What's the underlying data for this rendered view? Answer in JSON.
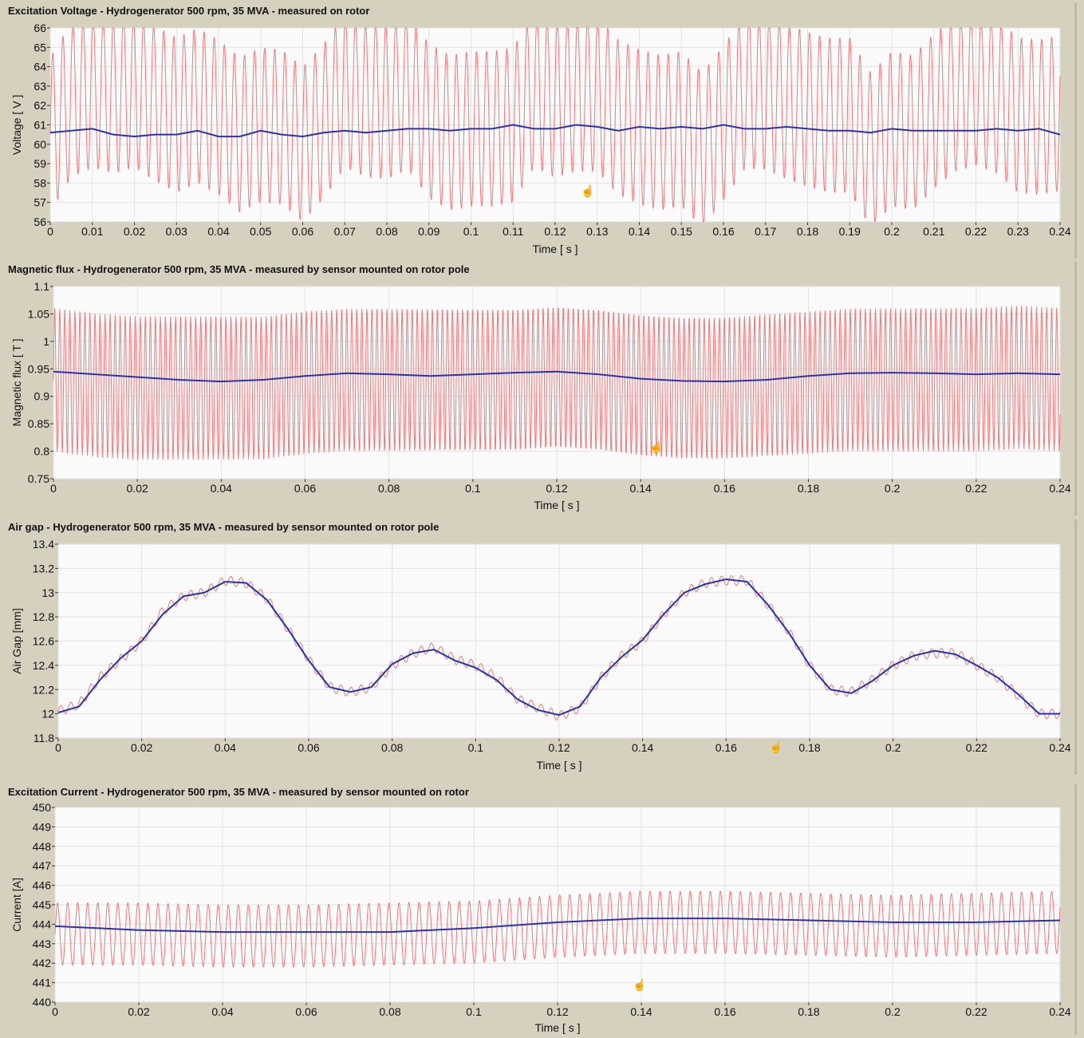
{
  "chart_data": [
    {
      "id": "voltage",
      "type": "line",
      "title": "Excitation Voltage - Hydrogenerator 500 rpm, 35 MVA - measured on rotor",
      "xlabel": "Time [ s ]",
      "ylabel": "Voltage [ V ]",
      "xlim": [
        0,
        0.24
      ],
      "ylim": [
        56,
        66
      ],
      "xticks": [
        0,
        0.01,
        0.02,
        0.03,
        0.04,
        0.05,
        0.06,
        0.07,
        0.08,
        0.09,
        0.1,
        0.11,
        0.12,
        0.13,
        0.14,
        0.15,
        0.16,
        0.17,
        0.18,
        0.19,
        0.2,
        0.21,
        0.22,
        0.23,
        0.24
      ],
      "xtick_labels": [
        "0",
        "0.01",
        "0.02",
        "0.03",
        "0.04",
        "0.05",
        "0.06",
        "0.07",
        "0.08",
        "0.09",
        "0.1",
        "0.11",
        "0.12",
        "0.13",
        "0.14",
        "0.15",
        "0.16",
        "0.17",
        "0.18",
        "0.19",
        "0.2",
        "0.21",
        "0.22",
        "0.23",
        "0.24"
      ],
      "yticks": [
        56,
        57,
        58,
        59,
        60,
        61,
        62,
        63,
        64,
        65,
        66
      ],
      "ytick_labels": [
        "56",
        "57",
        "58",
        "59",
        "60",
        "61",
        "62",
        "63",
        "64",
        "65",
        "66"
      ],
      "grid": true,
      "series": [
        {
          "color": "#f07878",
          "style": "thin",
          "x": [
            0.0,
            0.005,
            0.01,
            0.015,
            0.02,
            0.025,
            0.03,
            0.035,
            0.04,
            0.045,
            0.05,
            0.055,
            0.06,
            0.065,
            0.07,
            0.075,
            0.08,
            0.085,
            0.09,
            0.095,
            0.1,
            0.105,
            0.11,
            0.115,
            0.12,
            0.125,
            0.13,
            0.135,
            0.14,
            0.145,
            0.15,
            0.155,
            0.16,
            0.165,
            0.17,
            0.175,
            0.18,
            0.185,
            0.19,
            0.195,
            0.2,
            0.205,
            0.21,
            0.215,
            0.22,
            0.225,
            0.23,
            0.235,
            0.24
          ],
          "y": [
            60.5,
            62.3,
            62.8,
            62.5,
            62.8,
            62.1,
            61.5,
            62.0,
            61.4,
            60.5,
            61.0,
            60.9,
            60.0,
            61.2,
            62.8,
            62.3,
            62.2,
            62.7,
            61.2,
            60.6,
            60.8,
            60.8,
            61.0,
            62.8,
            62.3,
            62.6,
            62.6,
            61.4,
            60.9,
            60.6,
            60.8,
            59.7,
            61.1,
            62.7,
            62.7,
            62.2,
            61.8,
            61.5,
            61.5,
            59.7,
            60.8,
            60.6,
            61.7,
            62.6,
            62.9,
            62.5,
            61.5,
            61.4,
            61.6
          ],
          "oscillation": {
            "amplitude": 4.0,
            "frequency_hz": 417
          }
        },
        {
          "color": "#2233bb",
          "style": "thick",
          "x": [
            0.0,
            0.005,
            0.01,
            0.015,
            0.02,
            0.025,
            0.03,
            0.035,
            0.04,
            0.045,
            0.05,
            0.055,
            0.06,
            0.065,
            0.07,
            0.075,
            0.08,
            0.085,
            0.09,
            0.095,
            0.1,
            0.105,
            0.11,
            0.115,
            0.12,
            0.125,
            0.13,
            0.135,
            0.14,
            0.145,
            0.15,
            0.155,
            0.16,
            0.165,
            0.17,
            0.175,
            0.18,
            0.185,
            0.19,
            0.195,
            0.2,
            0.205,
            0.21,
            0.215,
            0.22,
            0.225,
            0.23,
            0.235,
            0.24
          ],
          "y": [
            60.6,
            60.7,
            60.8,
            60.5,
            60.4,
            60.5,
            60.5,
            60.7,
            60.4,
            60.4,
            60.7,
            60.5,
            60.4,
            60.6,
            60.7,
            60.6,
            60.7,
            60.8,
            60.8,
            60.7,
            60.8,
            60.8,
            61.0,
            60.8,
            60.8,
            61.0,
            60.9,
            60.7,
            60.9,
            60.8,
            60.9,
            60.8,
            61.0,
            60.8,
            60.8,
            60.9,
            60.8,
            60.7,
            60.7,
            60.6,
            60.8,
            60.7,
            60.7,
            60.7,
            60.7,
            60.8,
            60.7,
            60.8,
            60.5
          ]
        }
      ]
    },
    {
      "id": "flux",
      "type": "line",
      "title": "Magnetic flux - Hydrogenerator 500 rpm, 35 MVA - measured by sensor mounted on rotor pole",
      "xlabel": "Time [ s ]",
      "ylabel": "Magnetic flux [ T ]",
      "xlim": [
        0,
        0.24
      ],
      "ylim": [
        0.75,
        1.1
      ],
      "xticks": [
        0,
        0.02,
        0.04,
        0.06,
        0.08,
        0.1,
        0.12,
        0.14,
        0.16,
        0.18,
        0.2,
        0.22,
        0.24
      ],
      "xtick_labels": [
        "0",
        "0.02",
        "0.04",
        "0.06",
        "0.08",
        "0.1",
        "0.12",
        "0.14",
        "0.16",
        "0.18",
        "0.2",
        "0.22",
        "0.24"
      ],
      "yticks": [
        0.75,
        0.8,
        0.85,
        0.9,
        0.95,
        1.0,
        1.05,
        1.1
      ],
      "ytick_labels": [
        "0.75",
        "0.8",
        "0.85",
        "0.9",
        "0.95",
        "1",
        "1.05",
        "1.1"
      ],
      "grid": true,
      "series": [
        {
          "color": "#f07878",
          "style": "thin",
          "x": [
            0.0,
            0.01,
            0.02,
            0.03,
            0.04,
            0.05,
            0.06,
            0.07,
            0.08,
            0.09,
            0.1,
            0.11,
            0.12,
            0.13,
            0.14,
            0.15,
            0.16,
            0.17,
            0.18,
            0.19,
            0.2,
            0.21,
            0.22,
            0.23,
            0.24
          ],
          "y": [
            0.93,
            0.92,
            0.915,
            0.915,
            0.915,
            0.915,
            0.925,
            0.93,
            0.93,
            0.93,
            0.93,
            0.93,
            0.935,
            0.93,
            0.92,
            0.915,
            0.915,
            0.92,
            0.925,
            0.93,
            0.93,
            0.93,
            0.93,
            0.935,
            0.93
          ],
          "oscillation": {
            "amplitude": 0.13,
            "frequency_hz": 833
          }
        },
        {
          "color": "#2233bb",
          "style": "thick",
          "x": [
            0.0,
            0.01,
            0.02,
            0.03,
            0.04,
            0.05,
            0.06,
            0.07,
            0.08,
            0.09,
            0.1,
            0.11,
            0.12,
            0.13,
            0.14,
            0.15,
            0.16,
            0.17,
            0.18,
            0.19,
            0.2,
            0.21,
            0.22,
            0.23,
            0.24
          ],
          "y": [
            0.945,
            0.94,
            0.935,
            0.93,
            0.927,
            0.93,
            0.937,
            0.942,
            0.94,
            0.937,
            0.94,
            0.943,
            0.945,
            0.94,
            0.932,
            0.928,
            0.927,
            0.93,
            0.937,
            0.942,
            0.943,
            0.942,
            0.94,
            0.942,
            0.94
          ]
        }
      ]
    },
    {
      "id": "airgap",
      "type": "line",
      "title": "Air gap - Hydrogenerator 500 rpm, 35 MVA - measured by sensor mounted on rotor pole",
      "xlabel": "Time [ s ]",
      "ylabel": "Air Gap [mm]",
      "xlim": [
        0,
        0.24
      ],
      "ylim": [
        11.8,
        13.4
      ],
      "xticks": [
        0,
        0.02,
        0.04,
        0.06,
        0.08,
        0.1,
        0.12,
        0.14,
        0.16,
        0.18,
        0.2,
        0.22,
        0.24
      ],
      "xtick_labels": [
        "0",
        "0.02",
        "0.04",
        "0.06",
        "0.08",
        "0.1",
        "0.12",
        "0.14",
        "0.16",
        "0.18",
        "0.2",
        "0.22",
        "0.24"
      ],
      "yticks": [
        11.8,
        12.0,
        12.2,
        12.4,
        12.6,
        12.8,
        13.0,
        13.2,
        13.4
      ],
      "ytick_labels": [
        "11.8",
        "12",
        "12.2",
        "12.4",
        "12.6",
        "12.8",
        "13",
        "13.2",
        "13.4"
      ],
      "grid": true,
      "series": [
        {
          "color": "#f07878",
          "style": "thin",
          "x": [
            0.0,
            0.005,
            0.01,
            0.015,
            0.02,
            0.025,
            0.03,
            0.035,
            0.04,
            0.045,
            0.05,
            0.055,
            0.06,
            0.065,
            0.07,
            0.075,
            0.08,
            0.085,
            0.09,
            0.095,
            0.1,
            0.105,
            0.11,
            0.115,
            0.12,
            0.125,
            0.13,
            0.135,
            0.14,
            0.145,
            0.15,
            0.155,
            0.16,
            0.165,
            0.17,
            0.175,
            0.18,
            0.185,
            0.19,
            0.195,
            0.2,
            0.205,
            0.21,
            0.215,
            0.22,
            0.225,
            0.23,
            0.235,
            0.24
          ],
          "y": [
            12.02,
            12.08,
            12.3,
            12.45,
            12.6,
            12.85,
            12.97,
            13.0,
            13.1,
            13.08,
            12.95,
            12.7,
            12.45,
            12.22,
            12.18,
            12.22,
            12.4,
            12.5,
            12.55,
            12.45,
            12.4,
            12.3,
            12.12,
            12.05,
            11.98,
            12.05,
            12.3,
            12.48,
            12.6,
            12.82,
            13.0,
            13.08,
            13.1,
            13.1,
            12.9,
            12.68,
            12.4,
            12.2,
            12.18,
            12.28,
            12.4,
            12.48,
            12.5,
            12.5,
            12.4,
            12.3,
            12.15,
            12.0,
            12.0
          ],
          "oscillation": {
            "amplitude": 0.04,
            "frequency_hz": 417
          }
        },
        {
          "color": "#2233bb",
          "style": "thick",
          "x": [
            0.0,
            0.005,
            0.01,
            0.015,
            0.02,
            0.025,
            0.03,
            0.035,
            0.04,
            0.045,
            0.05,
            0.055,
            0.06,
            0.065,
            0.07,
            0.075,
            0.08,
            0.085,
            0.09,
            0.095,
            0.1,
            0.105,
            0.11,
            0.115,
            0.12,
            0.125,
            0.13,
            0.135,
            0.14,
            0.145,
            0.15,
            0.155,
            0.16,
            0.165,
            0.17,
            0.175,
            0.18,
            0.185,
            0.19,
            0.195,
            0.2,
            0.205,
            0.21,
            0.215,
            0.22,
            0.225,
            0.23,
            0.235,
            0.24
          ],
          "y": [
            12.01,
            12.06,
            12.28,
            12.46,
            12.6,
            12.82,
            12.97,
            13.0,
            13.09,
            13.08,
            12.94,
            12.7,
            12.44,
            12.22,
            12.18,
            12.22,
            12.41,
            12.5,
            12.53,
            12.44,
            12.38,
            12.28,
            12.12,
            12.03,
            11.99,
            12.06,
            12.3,
            12.47,
            12.61,
            12.82,
            13.0,
            13.07,
            13.11,
            13.09,
            12.9,
            12.67,
            12.4,
            12.2,
            12.17,
            12.27,
            12.4,
            12.48,
            12.52,
            12.49,
            12.4,
            12.3,
            12.16,
            12.0,
            12.0
          ]
        }
      ]
    },
    {
      "id": "current",
      "type": "line",
      "title": "Excitation Current - Hydrogenerator 500 rpm, 35 MVA - measured by sensor mounted on rotor",
      "xlabel": "Time [ s ]",
      "ylabel": "Current [A]",
      "xlim": [
        0,
        0.24
      ],
      "ylim": [
        440,
        450
      ],
      "xticks": [
        0,
        0.02,
        0.04,
        0.06,
        0.08,
        0.1,
        0.12,
        0.14,
        0.16,
        0.18,
        0.2,
        0.22,
        0.24
      ],
      "xtick_labels": [
        "0",
        "0.02",
        "0.04",
        "0.06",
        "0.08",
        "0.1",
        "0.12",
        "0.14",
        "0.16",
        "0.18",
        "0.2",
        "0.22",
        "0.24"
      ],
      "yticks": [
        440,
        441,
        442,
        443,
        444,
        445,
        446,
        447,
        448,
        449,
        450
      ],
      "ytick_labels": [
        "440",
        "441",
        "442",
        "443",
        "444",
        "445",
        "446",
        "447",
        "448",
        "449",
        "450"
      ],
      "grid": true,
      "series": [
        {
          "color": "#f07878",
          "style": "thin",
          "x": [
            0.0,
            0.02,
            0.04,
            0.06,
            0.08,
            0.1,
            0.12,
            0.14,
            0.16,
            0.18,
            0.2,
            0.22,
            0.24
          ],
          "y": [
            443.5,
            443.5,
            443.4,
            443.4,
            443.5,
            443.6,
            443.9,
            444.1,
            444.1,
            444.0,
            443.9,
            444.0,
            444.1
          ],
          "oscillation": {
            "amplitude": 1.6,
            "frequency_hz": 417
          }
        },
        {
          "color": "#2233bb",
          "style": "thick",
          "x": [
            0.0,
            0.02,
            0.04,
            0.06,
            0.08,
            0.1,
            0.12,
            0.14,
            0.16,
            0.18,
            0.2,
            0.22,
            0.24
          ],
          "y": [
            443.9,
            443.7,
            443.6,
            443.6,
            443.6,
            443.8,
            444.1,
            444.3,
            444.3,
            444.2,
            444.1,
            444.1,
            444.2
          ]
        }
      ]
    }
  ]
}
